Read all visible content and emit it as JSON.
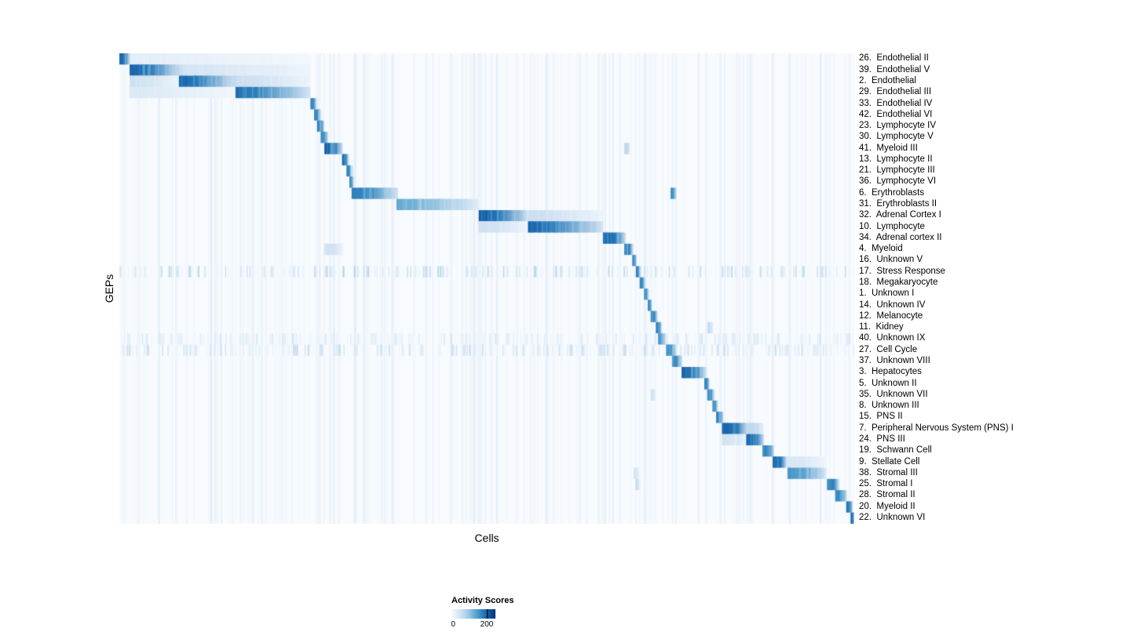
{
  "chart_data": {
    "type": "heatmap",
    "title": "",
    "xlabel": "Cells",
    "ylabel": "GEPs",
    "colorbar": {
      "title": "Activity Scores",
      "min": 0,
      "max": 200,
      "min_label": "0",
      "max_label": "200"
    },
    "colormap": "Blues (white #f7fbff to dark navy #08306b)",
    "layout": {
      "grid": false,
      "legend_position": "bottom-center",
      "row_labels_position": "right"
    },
    "description": "GEP activity scores across cells; rows ordered so each GEP's high-activity cell block forms a diagonal staircase. Blocks are [startFraction, endFraction] along the cell axis with peak activity score (0-200 scale); secondary entries are [start, end, peak]; diffuse is relative scattered background activity.",
    "rows": [
      {
        "label": "26.  Endothelial II",
        "block": [
          0.0,
          0.014
        ],
        "peak": 200,
        "secondary": [
          [
            0.014,
            0.26,
            25
          ]
        ]
      },
      {
        "label": "39.  Endothelial V",
        "block": [
          0.014,
          0.085
        ],
        "peak": 200,
        "secondary": [
          [
            0.085,
            0.26,
            45
          ]
        ]
      },
      {
        "label": "2.  Endothelial",
        "block": [
          0.081,
          0.158
        ],
        "peak": 195,
        "secondary": [
          [
            0.014,
            0.081,
            50
          ],
          [
            0.158,
            0.26,
            55
          ]
        ]
      },
      {
        "label": "29.  Endothelial III",
        "block": [
          0.158,
          0.26
        ],
        "peak": 190,
        "secondary": [
          [
            0.014,
            0.158,
            35
          ]
        ]
      },
      {
        "label": "33.  Endothelial IV",
        "block": [
          0.26,
          0.268
        ],
        "peak": 175
      },
      {
        "label": "42.  Endothelial VI",
        "block": [
          0.265,
          0.274
        ],
        "peak": 170
      },
      {
        "label": "23.  Lymphocyte IV",
        "block": [
          0.269,
          0.279
        ],
        "peak": 180
      },
      {
        "label": "30.  Lymphocyte V",
        "block": [
          0.274,
          0.284
        ],
        "peak": 175
      },
      {
        "label": "41.  Myeloid III",
        "block": [
          0.279,
          0.304
        ],
        "peak": 200,
        "secondary": [
          [
            0.687,
            0.695,
            70
          ]
        ]
      },
      {
        "label": "13.  Lymphocyte II",
        "block": [
          0.303,
          0.312
        ],
        "peak": 185
      },
      {
        "label": "21.  Lymphocyte III",
        "block": [
          0.309,
          0.316
        ],
        "peak": 175
      },
      {
        "label": "36.  Lymphocyte VI",
        "block": [
          0.313,
          0.319
        ],
        "peak": 165
      },
      {
        "label": "6.  Erythroblasts",
        "block": [
          0.316,
          0.379
        ],
        "peak": 175,
        "secondary": [
          [
            0.75,
            0.758,
            160
          ]
        ]
      },
      {
        "label": "31.  Erythroblasts II",
        "block": [
          0.377,
          0.489
        ],
        "peak": 130
      },
      {
        "label": "32.  Adrenal Cortex I",
        "block": [
          0.489,
          0.556
        ],
        "peak": 200,
        "secondary": [
          [
            0.556,
            0.658,
            55
          ]
        ]
      },
      {
        "label": "10.  Lymphocyte",
        "block": [
          0.556,
          0.658
        ],
        "peak": 200,
        "secondary": [
          [
            0.489,
            0.556,
            50
          ]
        ]
      },
      {
        "label": "34.  Adrenal cortex II",
        "block": [
          0.658,
          0.689
        ],
        "peak": 200
      },
      {
        "label": "4.  Myeloid",
        "block": [
          0.687,
          0.699
        ],
        "peak": 185,
        "secondary": [
          [
            0.279,
            0.304,
            50
          ]
        ]
      },
      {
        "label": "16.  Unknown V",
        "block": [
          0.698,
          0.704
        ],
        "peak": 175
      },
      {
        "label": "17.  Stress Response",
        "block": [
          0.703,
          0.709
        ],
        "peak": 175,
        "diffuse": 0.5
      },
      {
        "label": "18.  Megakaryocyte",
        "block": [
          0.708,
          0.715
        ],
        "peak": 170
      },
      {
        "label": "1.  Unknown I",
        "block": [
          0.714,
          0.72
        ],
        "peak": 165
      },
      {
        "label": "14.  Unknown IV",
        "block": [
          0.719,
          0.725
        ],
        "peak": 165
      },
      {
        "label": "12.  Melanocyte",
        "block": [
          0.723,
          0.732
        ],
        "peak": 175
      },
      {
        "label": "11.  Kidney",
        "block": [
          0.73,
          0.738
        ],
        "peak": 175,
        "secondary": [
          [
            0.8,
            0.808,
            60
          ]
        ]
      },
      {
        "label": "40.  Unknown IX",
        "block": [
          0.733,
          0.744
        ],
        "peak": 150,
        "diffuse": 0.3
      },
      {
        "label": "27.  Cell Cycle",
        "block": [
          0.744,
          0.758
        ],
        "peak": 160,
        "diffuse": 0.45
      },
      {
        "label": "37.  Unknown VIII",
        "block": [
          0.752,
          0.766
        ],
        "peak": 170
      },
      {
        "label": "3.  Hepatocytes",
        "block": [
          0.765,
          0.798
        ],
        "peak": 200
      },
      {
        "label": "5.  Unknown II",
        "block": [
          0.796,
          0.803
        ],
        "peak": 175
      },
      {
        "label": "35.  Unknown VII",
        "block": [
          0.8,
          0.809
        ],
        "peak": 175,
        "secondary": [
          [
            0.723,
            0.73,
            50
          ]
        ]
      },
      {
        "label": "8.  Unknown III",
        "block": [
          0.807,
          0.814
        ],
        "peak": 165
      },
      {
        "label": "15.  PNS II",
        "block": [
          0.812,
          0.822
        ],
        "peak": 175
      },
      {
        "label": "7.  Peripheral Nervous System (PNS) I",
        "block": [
          0.82,
          0.855
        ],
        "peak": 200,
        "secondary": [
          [
            0.855,
            0.877,
            70
          ]
        ]
      },
      {
        "label": "24.  PNS III",
        "block": [
          0.853,
          0.877
        ],
        "peak": 200,
        "secondary": [
          [
            0.82,
            0.855,
            45
          ]
        ]
      },
      {
        "label": "19.  Schwann Cell",
        "block": [
          0.875,
          0.891
        ],
        "peak": 185
      },
      {
        "label": "9.  Stellate Cell",
        "block": [
          0.889,
          0.908
        ],
        "peak": 200,
        "secondary": [
          [
            0.909,
            0.962,
            40
          ]
        ]
      },
      {
        "label": "38.  Stromal III",
        "block": [
          0.909,
          0.962
        ],
        "peak": 150,
        "secondary": [
          [
            0.7,
            0.707,
            50
          ]
        ]
      },
      {
        "label": "25.  Stromal I",
        "block": [
          0.963,
          0.979
        ],
        "peak": 185,
        "secondary": [
          [
            0.702,
            0.708,
            55
          ]
        ]
      },
      {
        "label": "28.  Stromal II",
        "block": [
          0.974,
          0.99
        ],
        "peak": 175
      },
      {
        "label": "20.  Myeloid II",
        "block": [
          0.989,
          0.998
        ],
        "peak": 185
      },
      {
        "label": "22.  Unknown VI",
        "block": [
          0.995,
          1.0
        ],
        "peak": 200
      }
    ]
  }
}
